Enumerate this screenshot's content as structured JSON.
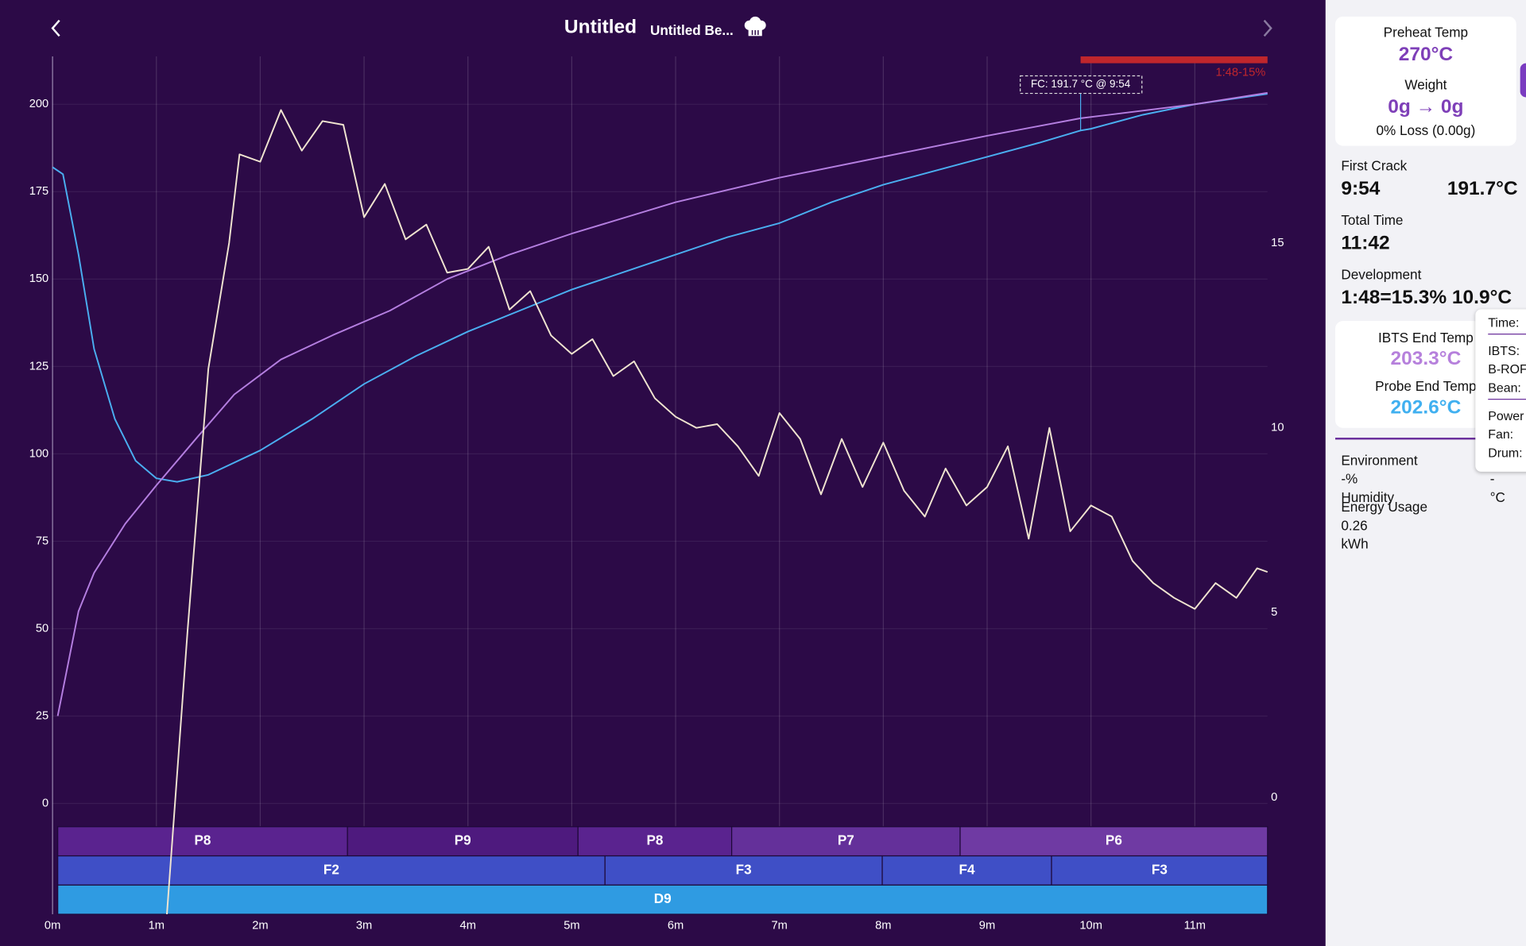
{
  "header": {
    "title": "Untitled",
    "subtitle": "Untitled Be..."
  },
  "chart_data": {
    "type": "line",
    "xlim": [
      0,
      11.7
    ],
    "xticks": [
      {
        "value": 0,
        "label": "0m"
      },
      {
        "value": 1,
        "label": "1m"
      },
      {
        "value": 2,
        "label": "2m"
      },
      {
        "value": 3,
        "label": "3m"
      },
      {
        "value": 4,
        "label": "4m"
      },
      {
        "value": 5,
        "label": "5m"
      },
      {
        "value": 6,
        "label": "6m"
      },
      {
        "value": 7,
        "label": "7m"
      },
      {
        "value": 8,
        "label": "8m"
      },
      {
        "value": 9,
        "label": "9m"
      },
      {
        "value": 10,
        "label": "10m"
      },
      {
        "value": 11,
        "label": "11m"
      }
    ],
    "ylim": [
      -31.7,
      213.7
    ],
    "yticks": [
      0,
      25,
      50,
      75,
      100,
      125,
      150,
      175,
      200
    ],
    "y2lim": [
      -3.16,
      20.05
    ],
    "y2ticks": [
      0,
      5,
      10,
      15
    ],
    "grid": true,
    "series": [
      {
        "color": "#4aaef0",
        "x": [
          0,
          0.1,
          0.25,
          0.4,
          0.6,
          0.8,
          1.0,
          1.2,
          1.5,
          2,
          2.5,
          3,
          3.5,
          4,
          4.5,
          5,
          5.5,
          6,
          6.5,
          7,
          7.5,
          8,
          8.5,
          9,
          9.5,
          9.9,
          10,
          10.5,
          11,
          11.7
        ],
        "values": [
          182,
          180,
          157,
          130,
          110,
          98,
          93,
          92,
          94,
          101,
          110,
          120,
          128,
          135,
          141,
          147,
          152,
          157,
          162,
          166,
          172,
          177,
          181,
          185,
          189,
          192.5,
          193,
          197,
          200,
          203
        ]
      },
      {
        "color": "#b47ee0",
        "x": [
          0.05,
          0.25,
          0.4,
          0.7,
          1.0,
          1.4,
          1.75,
          2.2,
          2.7,
          3.25,
          3.8,
          4.4,
          5,
          6,
          7,
          8,
          9,
          9.9,
          11,
          11.7
        ],
        "values": [
          25,
          55,
          66,
          80,
          91,
          105,
          117,
          127,
          134,
          141,
          150,
          157,
          163,
          172,
          179,
          185,
          191,
          196,
          200,
          203.3
        ]
      },
      {
        "color": "#f0e4d0",
        "axis": "y2",
        "x": [
          1.1,
          1.3,
          1.5,
          1.7,
          1.8,
          2,
          2.2,
          2.4,
          2.6,
          2.8,
          3,
          3.2,
          3.4,
          3.6,
          3.8,
          4,
          4.2,
          4.4,
          4.6,
          4.8,
          5,
          5.2,
          5.4,
          5.6,
          5.8,
          6,
          6.2,
          6.4,
          6.6,
          6.8,
          7,
          7.2,
          7.4,
          7.6,
          7.8,
          8,
          8.2,
          8.4,
          8.6,
          8.8,
          9,
          9.2,
          9.4,
          9.6,
          9.8,
          10,
          10.2,
          10.4,
          10.6,
          10.8,
          11,
          11.2,
          11.4,
          11.6,
          11.7
        ],
        "values": [
          -3.2,
          4.5,
          11.6,
          15,
          17.4,
          17.2,
          18.6,
          17.5,
          18.3,
          18.2,
          15.7,
          16.6,
          15.1,
          15.5,
          14.2,
          14.3,
          14.9,
          13.2,
          13.7,
          12.5,
          12,
          12.4,
          11.4,
          11.8,
          10.8,
          10.3,
          10,
          10.1,
          9.5,
          8.7,
          10.4,
          9.7,
          8.2,
          9.7,
          8.4,
          9.6,
          8.3,
          7.6,
          8.9,
          7.9,
          8.4,
          9.5,
          7,
          10,
          7.2,
          7.9,
          7.6,
          6.4,
          5.8,
          5.4,
          5.1,
          5.8,
          5.4,
          6.2,
          6.1
        ]
      }
    ],
    "annotation": {
      "label": "FC: 191.7 °C @ 9:54",
      "x": 9.9,
      "y": 192.5
    },
    "development": {
      "label": "1:48-15%",
      "start": 9.9,
      "end": 11.7,
      "color": "#c0262c"
    },
    "power": [
      {
        "label": "P8",
        "start": 0.05,
        "end": 2.84,
        "color": "#5a238f"
      },
      {
        "label": "P9",
        "start": 2.84,
        "end": 5.06,
        "color": "#4e1a7e"
      },
      {
        "label": "P8",
        "start": 5.06,
        "end": 6.54,
        "color": "#5a238f"
      },
      {
        "label": "P7",
        "start": 6.54,
        "end": 8.74,
        "color": "#64309a"
      },
      {
        "label": "P6",
        "start": 8.74,
        "end": 11.7,
        "color": "#6f3aa3"
      }
    ],
    "fan": [
      {
        "label": "F2",
        "start": 0.05,
        "end": 5.32,
        "color": "#3f4fc6"
      },
      {
        "label": "F3",
        "start": 5.32,
        "end": 7.99,
        "color": "#3f4fc6"
      },
      {
        "label": "F4",
        "start": 7.99,
        "end": 9.62,
        "color": "#3f4fc6"
      },
      {
        "label": "F3",
        "start": 9.62,
        "end": 11.7,
        "color": "#3f4fc6"
      }
    ],
    "drum": [
      {
        "label": "D9",
        "start": 0.05,
        "end": 11.7,
        "color": "#2f9be2"
      }
    ]
  },
  "sidebar": {
    "preheat_label": "Preheat Temp",
    "preheat_value": "270°C",
    "weight_label": "Weight",
    "weight_value": "0g → 0g",
    "loss": "0% Loss (0.00g)",
    "first_crack_label": "First Crack",
    "first_crack_time": "9:54",
    "first_crack_temp": "191.7°C",
    "total_time_label": "Total Time",
    "total_time": "11:42",
    "development_label": "Development",
    "development_value": "1:48=15.3% 10.9°C",
    "ibts_label": "IBTS End Temp",
    "ibts_value": "203.3°C",
    "probe_label": "Probe End Temp",
    "probe_value": "202.6°C",
    "environment_label": "Environment",
    "humidity_value": "-%",
    "humidity_label": "Humidity",
    "temp_value": "-",
    "temp_unit": "°C",
    "energy_label": "Energy Usage",
    "energy_value": "0.26",
    "energy_unit": "kWh",
    "tooltip": [
      "Time:",
      "IBTS:",
      "B-ROF",
      "Bean:",
      "Power",
      "Fan:",
      "Drum:"
    ]
  }
}
